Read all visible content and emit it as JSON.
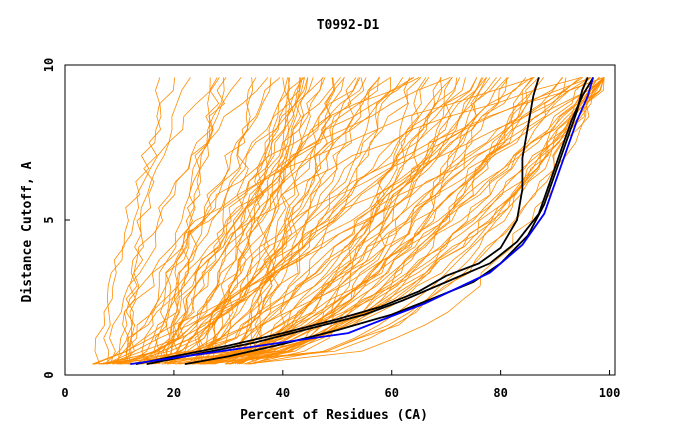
{
  "chart_data": {
    "type": "line",
    "title": "T0992-D1",
    "xlabel": "Percent of Residues (CA)",
    "ylabel": "Distance Cutoff, A",
    "xlim": [
      0,
      101
    ],
    "ylim": [
      0,
      10
    ],
    "x_ticks": [
      0,
      20,
      40,
      60,
      80,
      100
    ],
    "y_ticks": [
      0,
      5,
      10
    ],
    "grid": false,
    "colors": {
      "background_models": "#ff8c00",
      "black": "#000000",
      "blue": "#0000ff"
    },
    "highlighted_series": [
      {
        "color": "#000000",
        "x": [
          13,
          20,
          30,
          40,
          50,
          58,
          65,
          70,
          76,
          80,
          83,
          84,
          84,
          85,
          86,
          87
        ],
        "y": [
          0.35,
          0.6,
          0.95,
          1.35,
          1.8,
          2.2,
          2.7,
          3.2,
          3.6,
          4.1,
          5.0,
          6.0,
          7.0,
          8.0,
          9.0,
          9.6
        ]
      },
      {
        "color": "#000000",
        "x": [
          22,
          30,
          40,
          50,
          60,
          68,
          75,
          80,
          85,
          88,
          90,
          92,
          94,
          95,
          96
        ],
        "y": [
          0.35,
          0.6,
          1.0,
          1.45,
          1.95,
          2.5,
          3.0,
          3.6,
          4.5,
          5.5,
          6.5,
          7.5,
          8.5,
          9.2,
          9.6
        ]
      },
      {
        "color": "#000000",
        "x": [
          15,
          25,
          35,
          45,
          55,
          62,
          70,
          78,
          83,
          87,
          89,
          91,
          93,
          95,
          97
        ],
        "y": [
          0.35,
          0.7,
          1.05,
          1.5,
          1.95,
          2.4,
          3.0,
          3.6,
          4.3,
          5.2,
          6.2,
          7.2,
          8.2,
          9.0,
          9.6
        ]
      },
      {
        "color": "#0000ff",
        "x": [
          12,
          20,
          30,
          40,
          52,
          60,
          66,
          72,
          78,
          84,
          88,
          90,
          92,
          94,
          96,
          97
        ],
        "y": [
          0.35,
          0.55,
          0.8,
          1.05,
          1.35,
          1.9,
          2.3,
          2.8,
          3.3,
          4.2,
          5.2,
          6.2,
          7.2,
          8.2,
          9.0,
          9.6
        ]
      }
    ],
    "background_series_count": 110,
    "x_range_background": [
      5,
      99
    ],
    "y_range_background": [
      0.35,
      9.6
    ]
  }
}
